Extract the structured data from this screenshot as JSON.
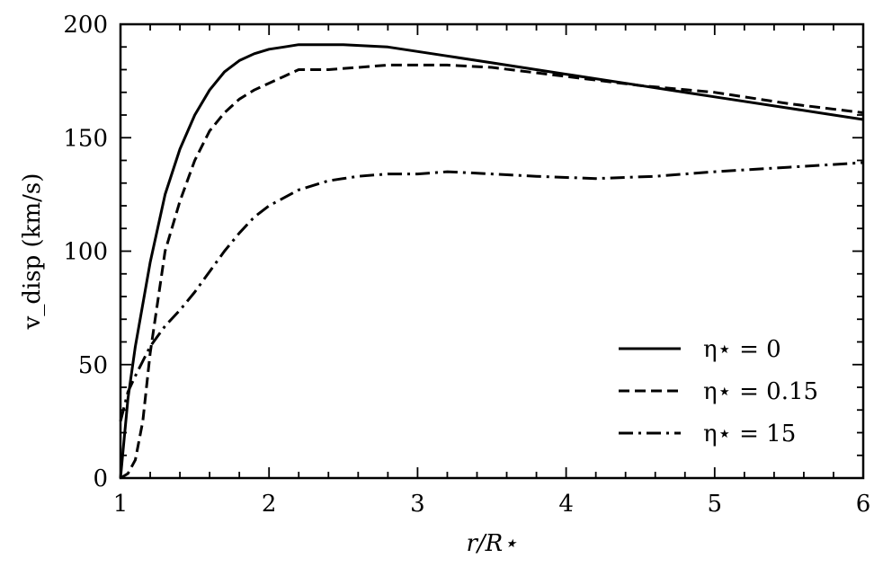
{
  "chart_data": {
    "type": "line",
    "xlabel": "r/R⋆",
    "ylabel": "v_disp (km/s)",
    "xlim": [
      1,
      6
    ],
    "ylim": [
      0,
      200
    ],
    "xticks": [
      1,
      2,
      3,
      4,
      5,
      6
    ],
    "yticks": [
      0,
      50,
      100,
      150,
      200
    ],
    "grid": false,
    "legend_position": "bottom-right",
    "series": [
      {
        "name": "η⋆ = 0",
        "style": "solid",
        "x": [
          1.0,
          1.05,
          1.1,
          1.2,
          1.3,
          1.4,
          1.5,
          1.6,
          1.7,
          1.8,
          1.9,
          2.0,
          2.1,
          2.2,
          2.3,
          2.5,
          2.8,
          3.0,
          3.2,
          3.5,
          4.0,
          4.5,
          5.0,
          5.5,
          6.0
        ],
        "y": [
          0,
          35,
          58,
          95,
          125,
          145,
          160,
          171,
          179,
          184,
          187,
          189,
          190,
          191,
          191,
          191,
          190,
          188,
          186,
          183,
          178,
          173,
          168,
          163,
          158
        ]
      },
      {
        "name": "η⋆ = 0.15",
        "style": "dashed",
        "x": [
          1.0,
          1.05,
          1.1,
          1.15,
          1.2,
          1.3,
          1.4,
          1.5,
          1.6,
          1.7,
          1.8,
          1.9,
          2.0,
          2.1,
          2.2,
          2.4,
          2.6,
          2.8,
          3.0,
          3.2,
          3.5,
          4.0,
          4.5,
          5.0,
          5.5,
          6.0
        ],
        "y": [
          0,
          2,
          8,
          25,
          55,
          100,
          122,
          140,
          153,
          161,
          167,
          171,
          174,
          177,
          180,
          180,
          181,
          182,
          182,
          182,
          181,
          177,
          173,
          170,
          165,
          161
        ]
      },
      {
        "name": "η⋆ = 15",
        "style": "dashdot",
        "x": [
          1.0,
          1.05,
          1.1,
          1.2,
          1.3,
          1.4,
          1.5,
          1.6,
          1.7,
          1.8,
          1.9,
          2.0,
          2.2,
          2.4,
          2.6,
          2.8,
          3.0,
          3.2,
          3.5,
          3.8,
          4.2,
          4.6,
          5.0,
          5.5,
          6.0
        ],
        "y": [
          25,
          38,
          45,
          58,
          67,
          74,
          82,
          91,
          100,
          108,
          115,
          120,
          127,
          131,
          133,
          134,
          134,
          135,
          134,
          133,
          132,
          133,
          135,
          137,
          139
        ]
      }
    ]
  }
}
